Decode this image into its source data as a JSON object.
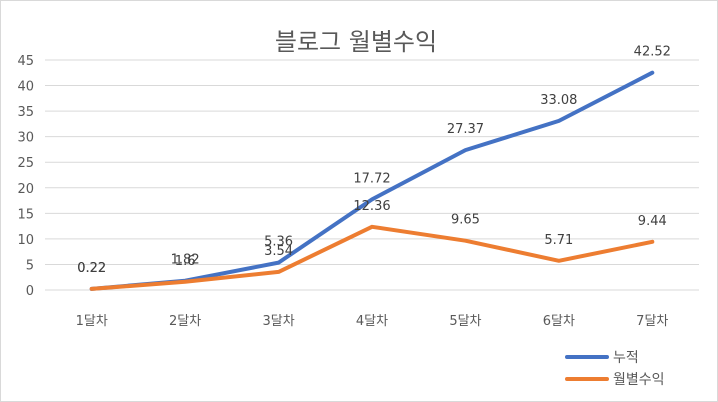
{
  "chart_data": {
    "type": "line",
    "title": "블로그 월별수익",
    "xlabel": "",
    "ylabel": "",
    "categories": [
      "1달차",
      "2달차",
      "3달차",
      "4달차",
      "5달차",
      "6달차",
      "7달차"
    ],
    "ylim": [
      0,
      45
    ],
    "yticks": [
      0,
      5,
      10,
      15,
      20,
      25,
      30,
      35,
      40,
      45
    ],
    "grid": true,
    "legend": "bottom-right",
    "series": [
      {
        "name": "누적",
        "color": "#4472C4",
        "values": [
          0.22,
          1.82,
          5.36,
          17.72,
          27.37,
          33.08,
          42.52
        ],
        "labels": [
          "0.22",
          "1.82",
          "5.36",
          "17.72",
          "27.37",
          "33.08",
          "42.52"
        ]
      },
      {
        "name": "월별수익",
        "color": "#ED7D31",
        "values": [
          0.22,
          1.6,
          3.54,
          12.36,
          9.65,
          5.71,
          9.44
        ],
        "labels": [
          "0.22",
          "1.6",
          "3.54",
          "12.36",
          "9.65",
          "5.71",
          "9.44"
        ]
      }
    ]
  }
}
